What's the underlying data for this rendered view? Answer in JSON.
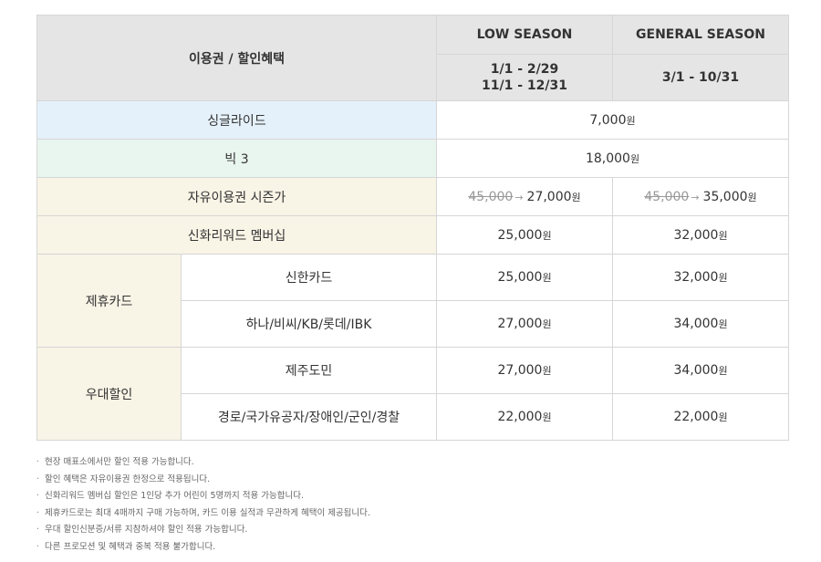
{
  "header": {
    "title": "이용권 / 할인혜택",
    "low_season": "LOW SEASON",
    "general_season": "GENERAL SEASON",
    "low_dates_1": "1/1 - 2/29",
    "low_dates_2": "11/1 - 12/31",
    "general_dates": "3/1 - 10/31"
  },
  "unit": "원",
  "arrow": "→",
  "rows": {
    "single": {
      "label": "싱글라이드",
      "price": "7,000"
    },
    "big3": {
      "label": "빅 3",
      "price": "18,000"
    },
    "season_pass": {
      "label": "자유이용권 시즌가",
      "low_old": "45,000",
      "low_new": "27,000",
      "general_old": "45,000",
      "general_new": "35,000"
    },
    "membership": {
      "label": "신화리워드 멤버십",
      "low": "25,000",
      "general": "32,000"
    },
    "partner_card": {
      "group_label": "제휴카드",
      "shinhan": {
        "label": "신한카드",
        "low": "25,000",
        "general": "32,000"
      },
      "others": {
        "label": "하나/비씨/KB/롯데/IBK",
        "low": "27,000",
        "general": "34,000"
      }
    },
    "discount": {
      "group_label": "우대할인",
      "jeju": {
        "label": "제주도민",
        "low": "27,000",
        "general": "34,000"
      },
      "special": {
        "label": "경로/국가유공자/장애인/군인/경찰",
        "low": "22,000",
        "general": "22,000"
      }
    }
  },
  "bullet": "·",
  "notes": [
    "현장 매표소에서만 할인 적용 가능합니다.",
    "할인 혜택은 자유이용권 한정으로 적용됩니다.",
    "신화리워드 멤버십 할인은 1인당 추가 어린이 5명까지 적용 가능합니다.",
    "제휴카드로는 최대 4매까지 구매 가능하며, 카드 이용 실적과 무관하게 혜택이 제공됩니다.",
    "우대 할인신분증/서류 지참하셔야 할인 적용 가능합니다.",
    "다른 프로모션 및 혜택과 중복 적용 불가합니다."
  ],
  "colors": {
    "header_bg": "#e5e5e5",
    "single_bg": "#e5f1fa",
    "big3_bg": "#e9f5ef",
    "other_label_bg": "#f8f4e6",
    "border": "#d6d6d6"
  }
}
